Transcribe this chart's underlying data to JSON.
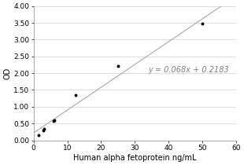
{
  "title": "",
  "xlabel": "Human alpha fetoprotein ng/mL",
  "ylabel": "OD",
  "xlim": [
    0,
    60
  ],
  "ylim": [
    0.0,
    4.0
  ],
  "xticks": [
    0,
    10,
    20,
    30,
    40,
    50,
    60
  ],
  "yticks": [
    0.0,
    0.5,
    1.0,
    1.5,
    2.0,
    2.5,
    3.0,
    3.5,
    4.0
  ],
  "scatter_x": [
    1.5,
    3.0,
    3.2,
    6.0,
    6.2,
    12.5,
    25.0,
    50.0
  ],
  "scatter_y": [
    0.15,
    0.3,
    0.35,
    0.57,
    0.6,
    1.35,
    2.22,
    3.47
  ],
  "line_slope": 0.068,
  "line_intercept": 0.2183,
  "equation_text": "y = 0.068x + 0.2183",
  "equation_x": 34,
  "equation_y": 2.1,
  "scatter_color": "#000000",
  "line_color": "#b0b0b0",
  "background_color": "#ffffff",
  "grid_color": "#d0d0d0",
  "scatter_size": 8,
  "xlabel_fontsize": 7.0,
  "ylabel_fontsize": 7.0,
  "tick_fontsize": 6.5,
  "equation_fontsize": 7.0,
  "equation_color": "#808080"
}
